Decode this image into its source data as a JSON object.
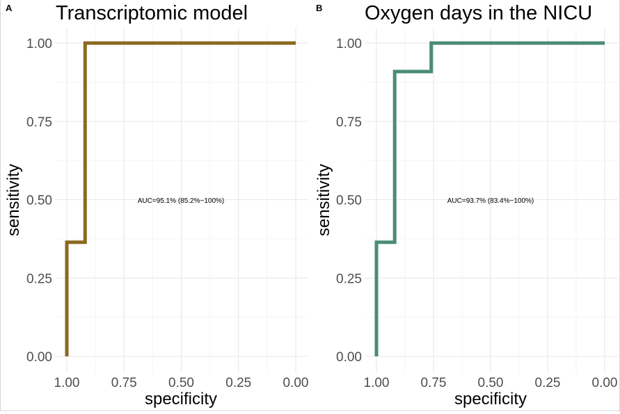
{
  "chart_data": [
    {
      "type": "line",
      "panel_tag": "A",
      "title": "Transcriptomic model",
      "xlabel": "specificity",
      "ylabel": "sensitivity",
      "x_reversed": true,
      "xlim": [
        1.0,
        0.0
      ],
      "ylim": [
        0.0,
        1.0
      ],
      "x_ticks": [
        "1.00",
        "0.75",
        "0.50",
        "0.25",
        "0.00"
      ],
      "y_ticks": [
        "0.00",
        "0.25",
        "0.50",
        "0.75",
        "1.00"
      ],
      "grid": true,
      "annotation": "AUC=95.1% (85.2%−100%)",
      "series": [
        {
          "color": "#8a6a1f",
          "points": [
            [
              1.0,
              0.0
            ],
            [
              1.0,
              0.364
            ],
            [
              0.92,
              0.364
            ],
            [
              0.92,
              1.0
            ],
            [
              0.0,
              1.0
            ]
          ]
        }
      ]
    },
    {
      "type": "line",
      "panel_tag": "B",
      "title": "Oxygen days in the NICU",
      "xlabel": "specificity",
      "ylabel": "sensitivity",
      "x_reversed": true,
      "xlim": [
        1.0,
        0.0
      ],
      "ylim": [
        0.0,
        1.0
      ],
      "x_ticks": [
        "1.00",
        "0.75",
        "0.50",
        "0.25",
        "0.00"
      ],
      "y_ticks": [
        "0.00",
        "0.25",
        "0.50",
        "0.75",
        "1.00"
      ],
      "grid": true,
      "annotation": "AUC=93.7% (83.4%−100%)",
      "series": [
        {
          "color": "#4a8c76",
          "points": [
            [
              1.0,
              0.0
            ],
            [
              1.0,
              0.364
            ],
            [
              0.92,
              0.364
            ],
            [
              0.92,
              0.909
            ],
            [
              0.76,
              0.909
            ],
            [
              0.76,
              1.0
            ],
            [
              0.0,
              1.0
            ]
          ]
        }
      ]
    }
  ]
}
